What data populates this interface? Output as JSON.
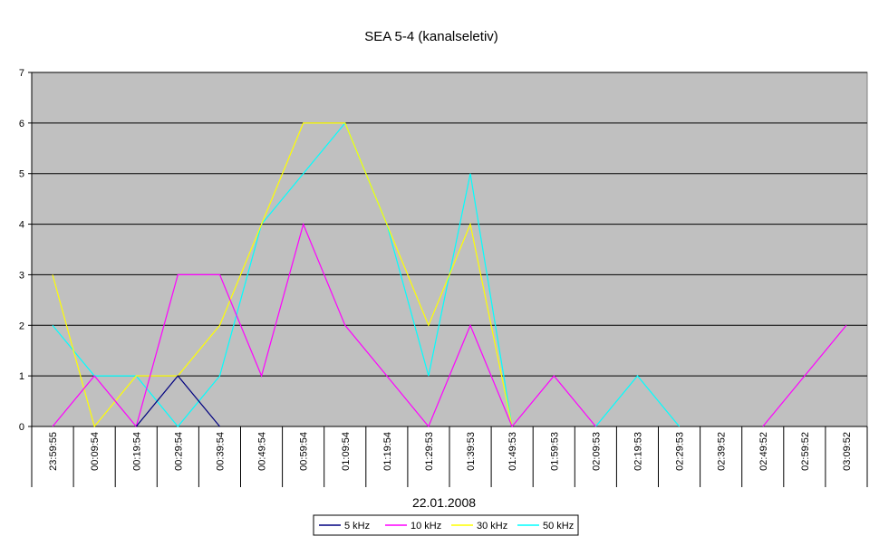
{
  "chart_data": {
    "type": "line",
    "title": "SEA 5-4 (kanalseletiv)",
    "xlabel": "22.01.2008",
    "ylabel": "",
    "ylim": [
      0,
      7
    ],
    "yticks": [
      0,
      1,
      2,
      3,
      4,
      5,
      6,
      7
    ],
    "grid": true,
    "legend_position": "bottom",
    "plot_background": "#c0c0c0",
    "categories": [
      "23:59:55",
      "00:09:54",
      "00:19:54",
      "00:29:54",
      "00:39:54",
      "00:49:54",
      "00:59:54",
      "01:09:54",
      "01:19:54",
      "01:29:53",
      "01:39:53",
      "01:49:53",
      "01:59:53",
      "02:09:53",
      "02:19:53",
      "02:29:53",
      "02:39:52",
      "02:49:52",
      "02:59:52",
      "03:09:52"
    ],
    "series": [
      {
        "name": "5 kHz",
        "color": "#000080",
        "values": [
          null,
          null,
          0,
          1,
          0,
          null,
          null,
          null,
          null,
          null,
          null,
          null,
          null,
          null,
          null,
          null,
          null,
          null,
          null,
          null
        ]
      },
      {
        "name": "10 kHz",
        "color": "#ff00ff",
        "values": [
          0,
          1,
          0,
          3,
          3,
          1,
          4,
          2,
          1,
          0,
          2,
          0,
          1,
          0,
          null,
          null,
          null,
          0,
          1,
          2
        ]
      },
      {
        "name": "30 kHz",
        "color": "#ffff00",
        "values": [
          3,
          0,
          1,
          1,
          2,
          4,
          6,
          6,
          4,
          2,
          4,
          0,
          null,
          null,
          null,
          null,
          null,
          null,
          null,
          null
        ]
      },
      {
        "name": "50 kHz",
        "color": "#00ffff",
        "values": [
          2,
          1,
          1,
          0,
          1,
          4,
          5,
          6,
          4,
          1,
          5,
          0,
          null,
          0,
          1,
          0,
          null,
          null,
          null,
          null
        ]
      }
    ]
  }
}
